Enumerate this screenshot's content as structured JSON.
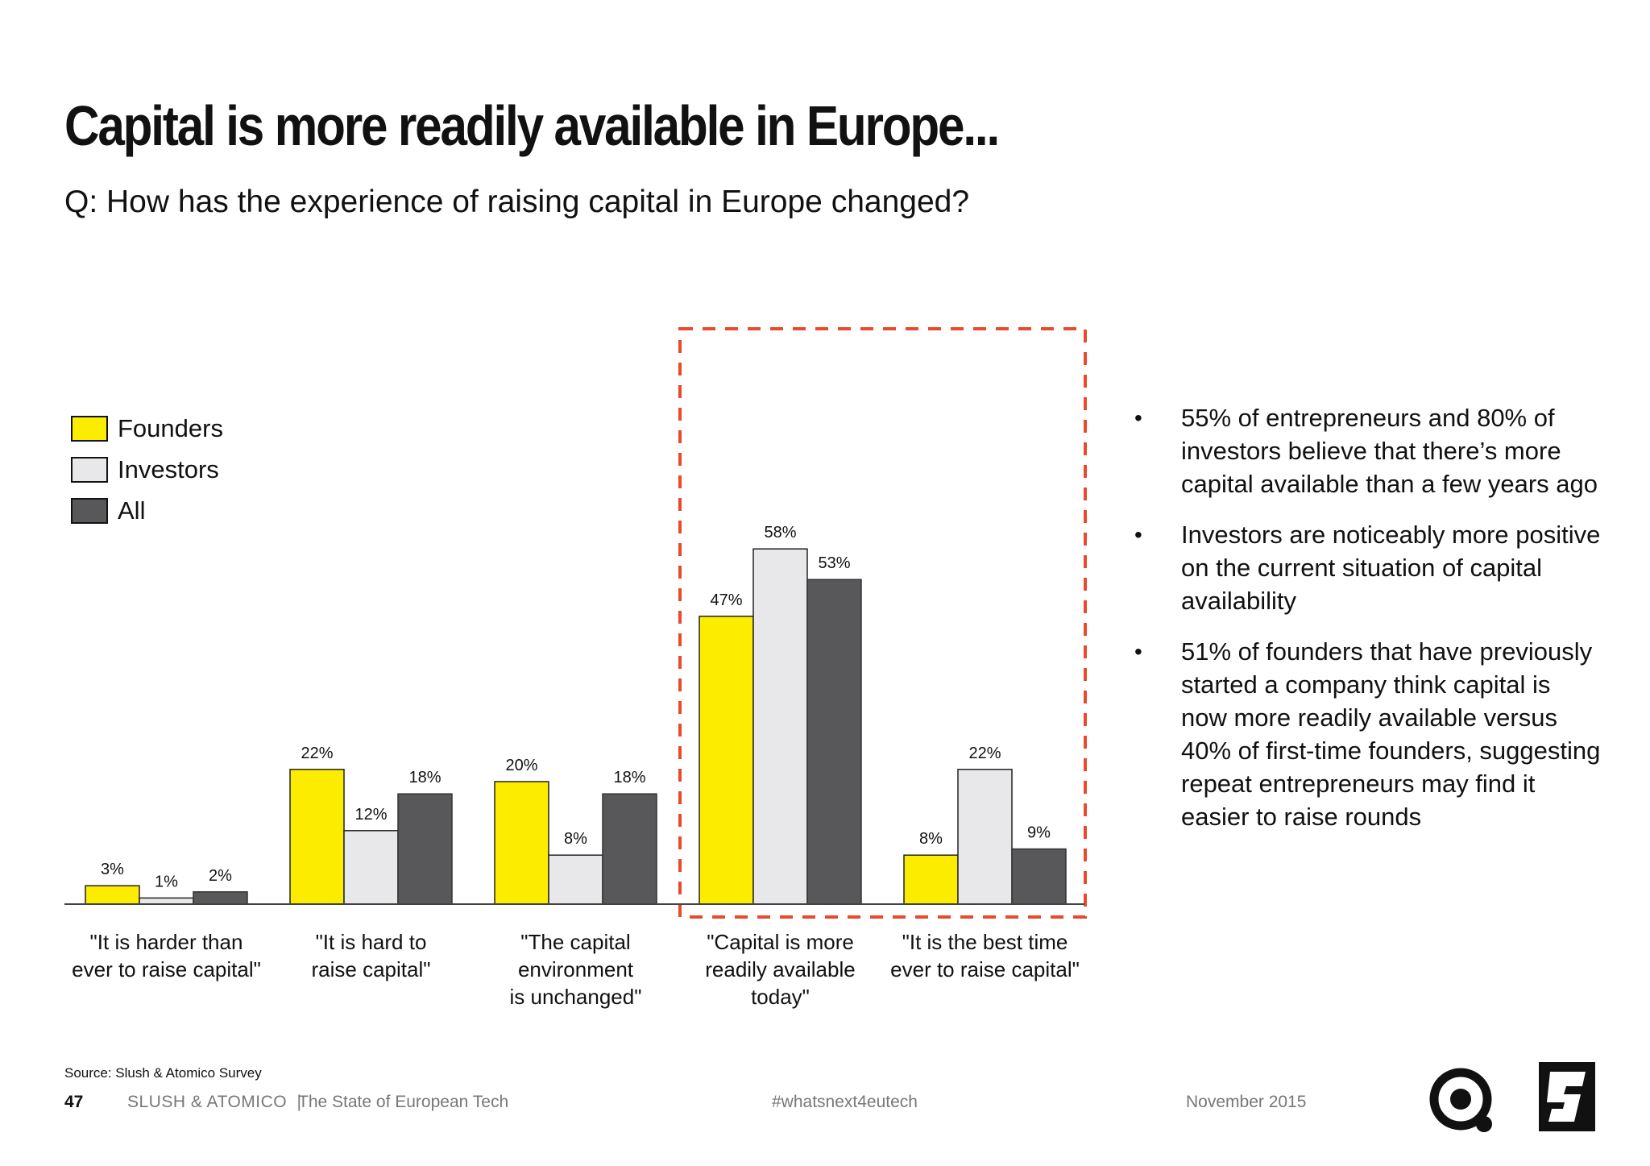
{
  "title": "Capital is more readily available in Europe...",
  "subtitle": "Q: How has the experience of raising capital in Europe changed?",
  "colors": {
    "founders": "#fcec00",
    "investors": "#e8e8ea",
    "all": "#58585a",
    "highlight": "#e84a2a"
  },
  "chart_data": {
    "type": "bar",
    "categories": [
      [
        "\"It is harder than",
        "ever to raise capital\""
      ],
      [
        "\"It is hard to",
        "raise capital\""
      ],
      [
        "\"The capital",
        "environment",
        "is unchanged\""
      ],
      [
        "\"Capital is more",
        "readily available",
        "today\""
      ],
      [
        "\"It is the best time",
        "ever to raise capital\""
      ]
    ],
    "series": [
      {
        "name": "Founders",
        "values": [
          3,
          22,
          20,
          47,
          8
        ],
        "labels": [
          "3%",
          "22%",
          "20%",
          "47%",
          "8%"
        ]
      },
      {
        "name": "Investors",
        "values": [
          1,
          12,
          8,
          58,
          22
        ],
        "labels": [
          "1%",
          "12%",
          "8%",
          "58%",
          "22%"
        ]
      },
      {
        "name": "All",
        "values": [
          2,
          18,
          18,
          53,
          9
        ],
        "labels": [
          "2%",
          "18%",
          "18%",
          "53%",
          "9%"
        ]
      }
    ],
    "ylim": [
      0,
      62
    ],
    "highlight_categories": [
      3,
      4
    ],
    "legend_position": "top-left",
    "grid": false
  },
  "bullets": [
    "55% of entrepreneurs and 80% of investors believe that there’s more capital available than a few years ago",
    "Investors are noticeably more positive on the current situation of capital availability",
    "51% of founders that have previously started a company think capital is now more readily available versus 40% of first-time founders, suggesting repeat entrepreneurs may find it easier to raise rounds"
  ],
  "bullet_glyph": "•",
  "footer": {
    "source": "Source: Slush & Atomico Survey",
    "page_number": "47",
    "org": "SLUSH & ATOMICO",
    "separator": "|",
    "publication": "The State of European Tech",
    "hashtag": "#whatsnext4eutech",
    "date": "November 2015"
  },
  "logos": [
    "atomico-logo-icon",
    "slush-logo-icon"
  ]
}
